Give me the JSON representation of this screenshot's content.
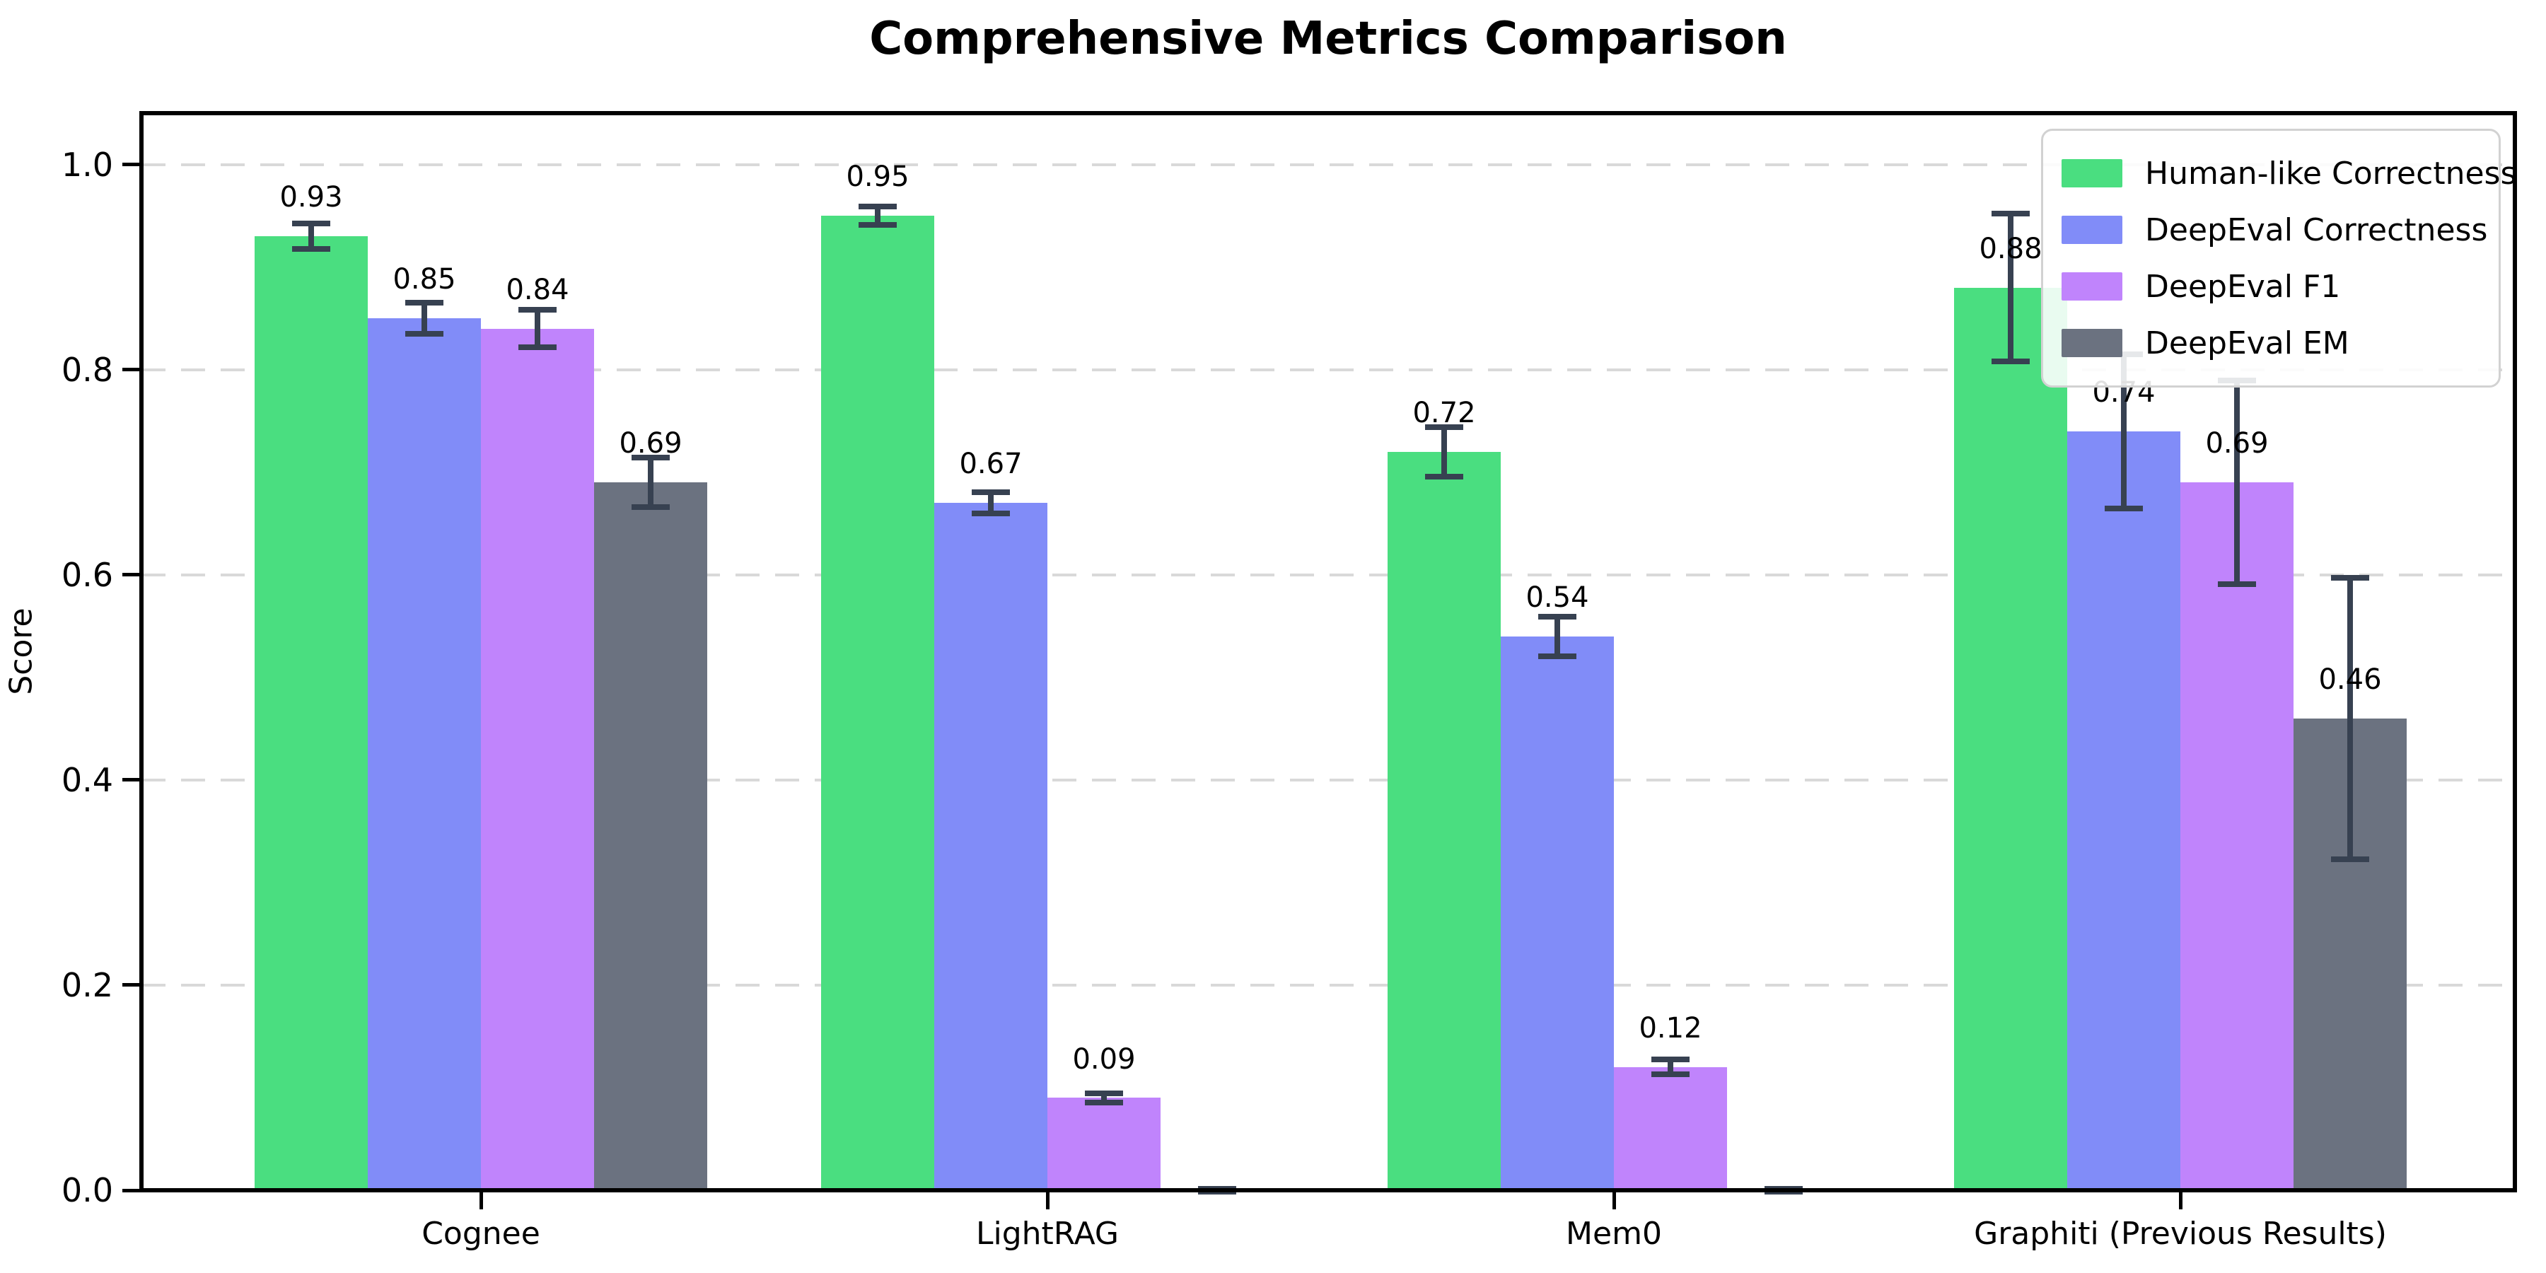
{
  "title": "Comprehensive Metrics Comparison",
  "ylabel": "Score",
  "colors": {
    "human_like_correctness": "#4ade80",
    "deepeval_correctness": "#818cf8",
    "deepeval_f1": "#c084fc",
    "deepeval_em": "#6b7280",
    "error_bar": "#374151",
    "gridline": "#d9d9d9",
    "axis": "#000000",
    "legend_border": "#d2d2d2"
  },
  "chart_data": {
    "type": "bar",
    "title": "Comprehensive Metrics Comparison",
    "xlabel": "",
    "ylabel": "Score",
    "categories": [
      "Cognee",
      "LightRAG",
      "Mem0",
      "Graphiti (Previous Results)"
    ],
    "series": [
      {
        "name": "Human-like Correctness",
        "color": "#4ade80",
        "values": [
          0.93,
          0.95,
          0.72,
          0.88
        ],
        "errors": [
          0.015,
          0.012,
          0.027,
          0.075
        ],
        "labels": [
          "0.93",
          "0.95",
          "0.72",
          "0.88"
        ]
      },
      {
        "name": "DeepEval Correctness",
        "color": "#818cf8",
        "values": [
          0.85,
          0.67,
          0.54,
          0.74
        ],
        "errors": [
          0.018,
          0.013,
          0.022,
          0.078
        ],
        "labels": [
          "0.85",
          "0.67",
          "0.54",
          "0.74"
        ]
      },
      {
        "name": "DeepEval F1",
        "color": "#c084fc",
        "values": [
          0.84,
          0.09,
          0.12,
          0.69
        ],
        "errors": [
          0.021,
          0.007,
          0.01,
          0.102
        ],
        "labels": [
          "0.84",
          "0.09",
          "0.12",
          "0.69"
        ]
      },
      {
        "name": "DeepEval EM",
        "color": "#6b7280",
        "values": [
          0.69,
          0.0,
          0.0,
          0.46
        ],
        "errors": [
          0.027,
          0.004,
          0.004,
          0.14
        ],
        "labels": [
          "0.69",
          "",
          "",
          "0.46"
        ]
      }
    ],
    "ylim": [
      0,
      1.05
    ],
    "yticks": [
      "0.0",
      "0.2",
      "0.4",
      "0.6",
      "0.8",
      "1.0"
    ],
    "grid": "horizontal-dashed",
    "legend_position": "upper right",
    "error_bars": true
  }
}
